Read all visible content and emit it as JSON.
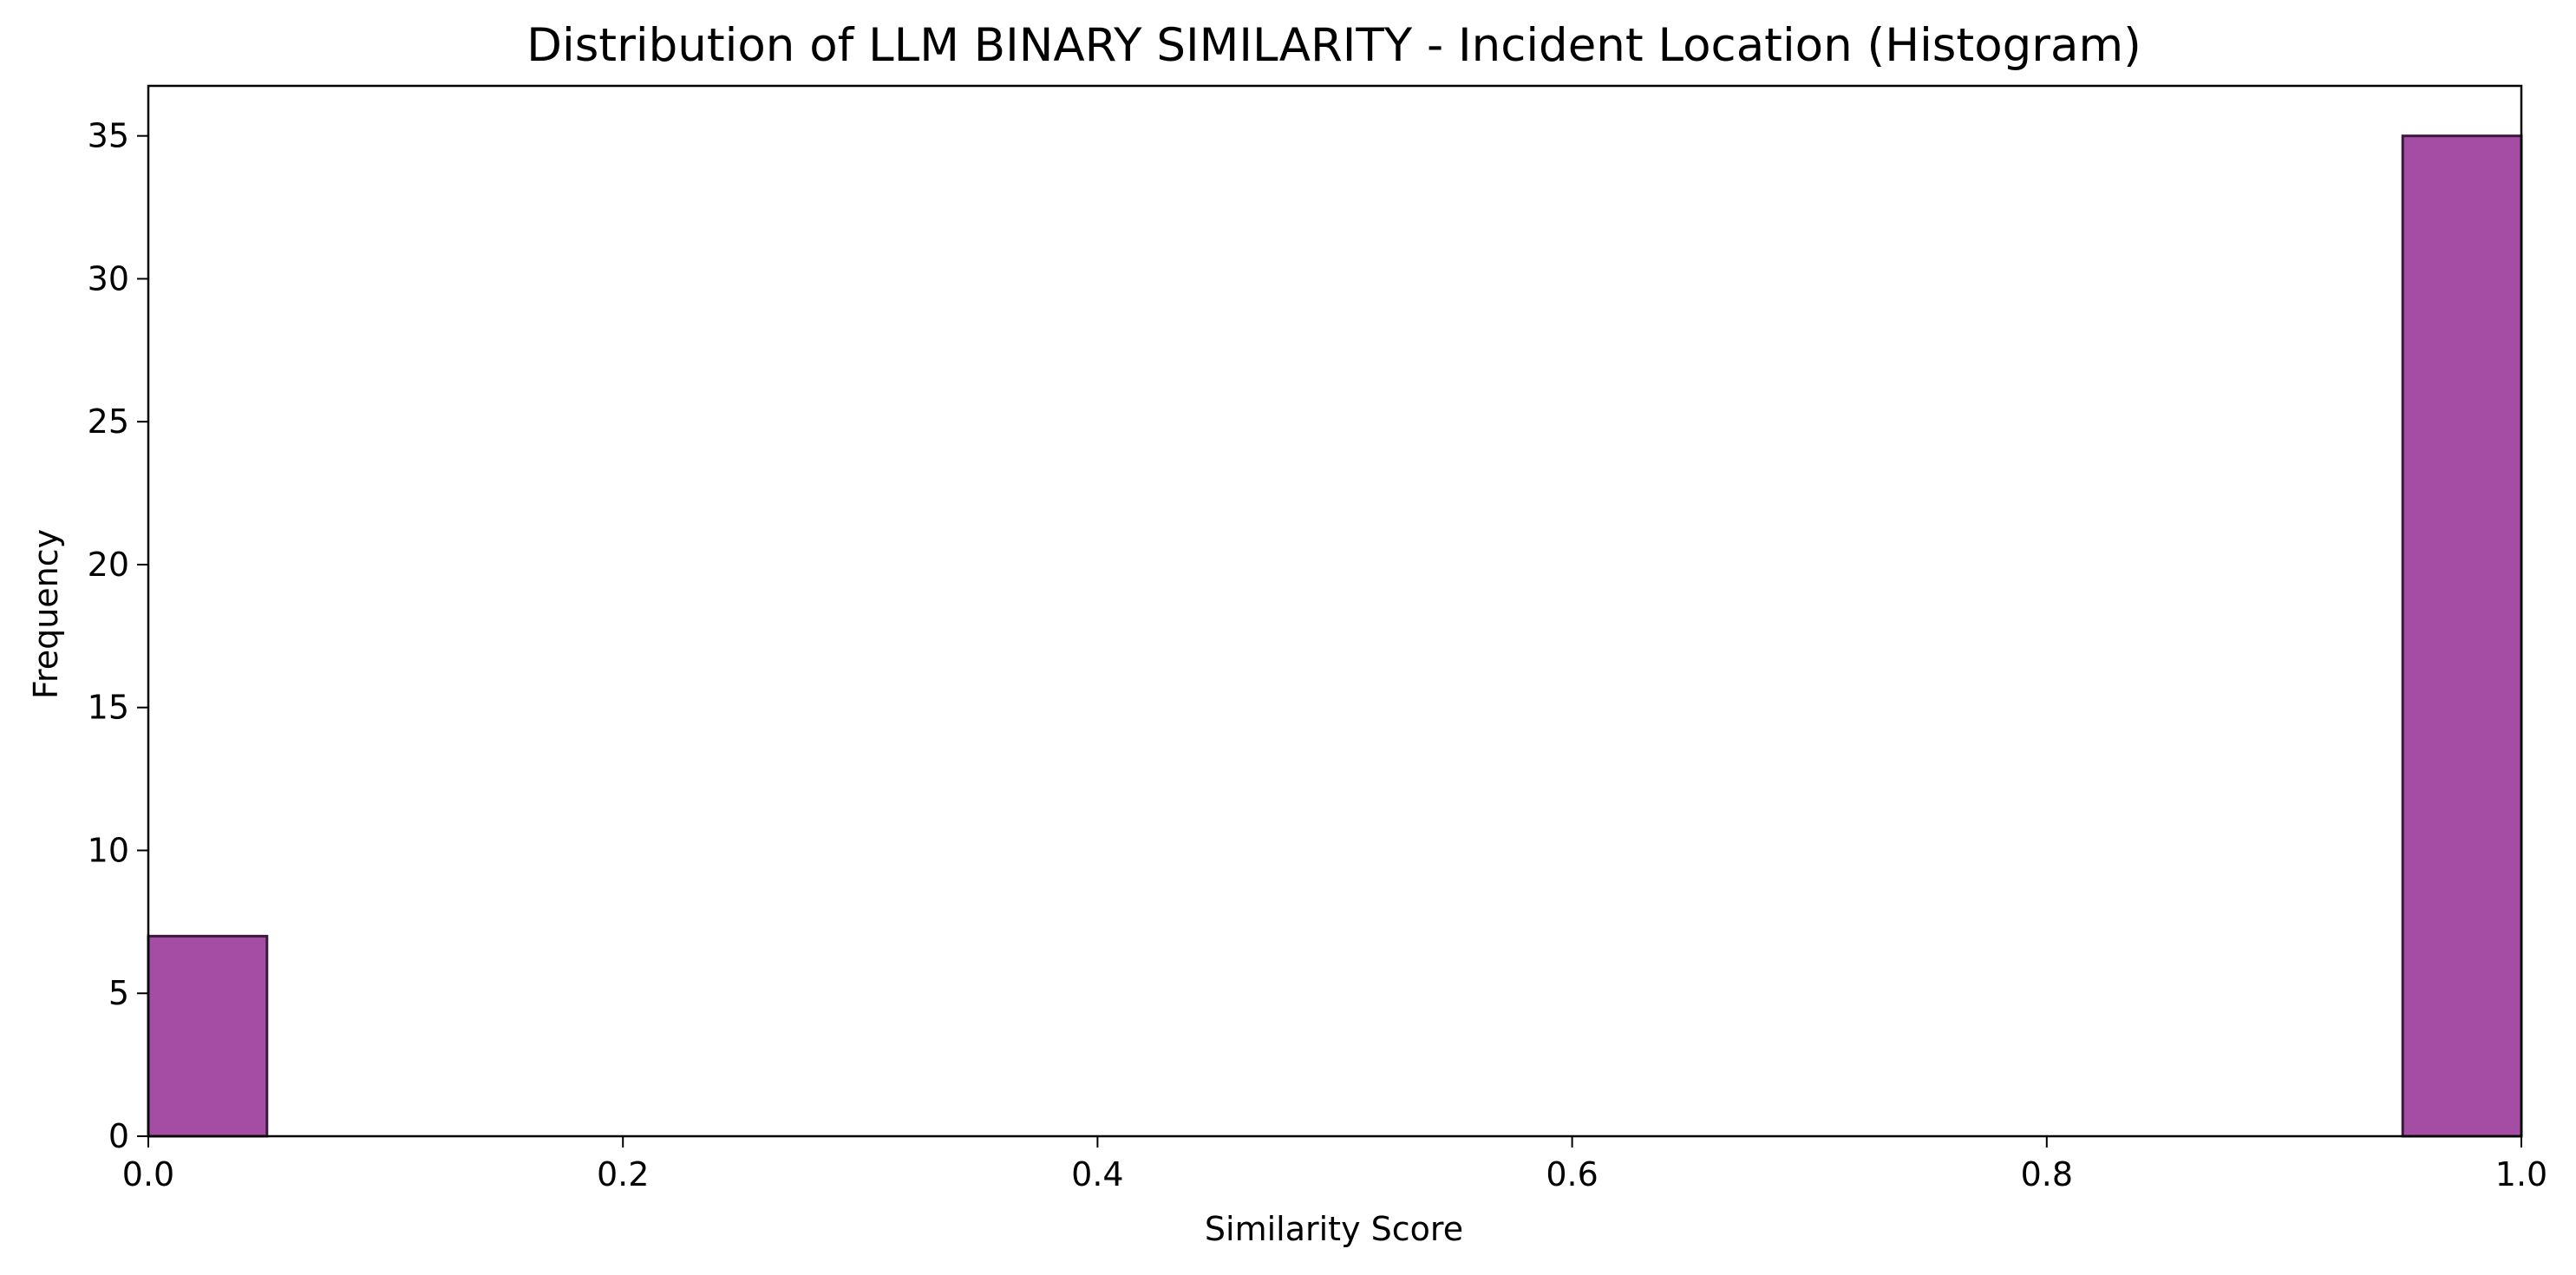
{
  "chart_data": {
    "type": "bar",
    "title": "Distribution of LLM BINARY SIMILARITY - Incident Location (Histogram)",
    "xlabel": "Similarity Score",
    "ylabel": "Frequency",
    "xlim": [
      0.0,
      1.0
    ],
    "ylim": [
      0,
      36.75
    ],
    "bin_width": 0.05,
    "bins": [
      {
        "x_start": 0.0,
        "x_end": 0.05,
        "count": 7
      },
      {
        "x_start": 0.95,
        "x_end": 1.0,
        "count": 35
      }
    ],
    "x_ticks": [
      "0.0",
      "0.2",
      "0.4",
      "0.6",
      "0.8",
      "1.0"
    ],
    "y_ticks": [
      "0",
      "5",
      "10",
      "15",
      "20",
      "25",
      "30",
      "35"
    ],
    "bar_color": "#993399",
    "bar_edge_color": "#3a1a3a",
    "grid": false,
    "legend": "none"
  }
}
